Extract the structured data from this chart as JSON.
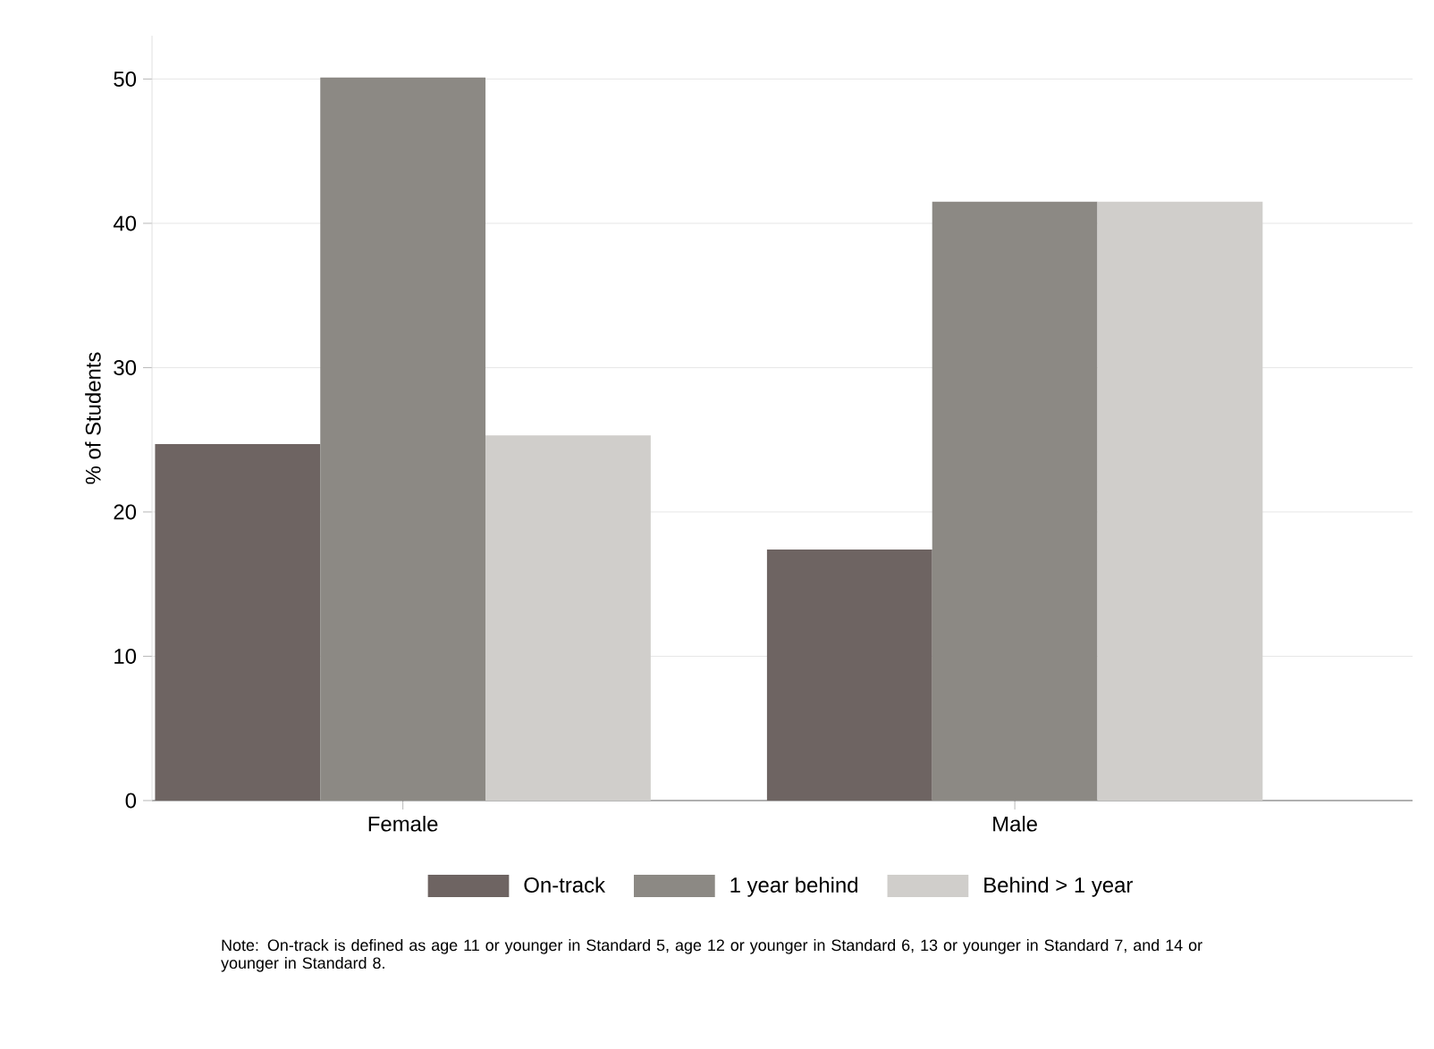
{
  "chart_data": {
    "type": "bar",
    "ylabel": "% of Students",
    "categories": [
      "Female",
      "Male"
    ],
    "series": [
      {
        "name": "On-track",
        "color": "#6e6462",
        "values": [
          24.7,
          17.4
        ]
      },
      {
        "name": "1 year behind",
        "color": "#8c8984",
        "values": [
          50.1,
          41.5
        ]
      },
      {
        "name": "Behind > 1 year",
        "color": "#d0cecb",
        "values": [
          25.3,
          41.5
        ]
      }
    ],
    "ylim": [
      0,
      53
    ],
    "yticks": [
      0,
      10,
      20,
      30,
      40,
      50
    ],
    "grid": "y",
    "legend": "bottom",
    "annotations": [
      "Note: On-track is defined as age 11 or younger in Standard 5, age 12 or younger in Standard 6, 13 or younger in Standard 7, and 14 or younger in Standard 8."
    ]
  }
}
